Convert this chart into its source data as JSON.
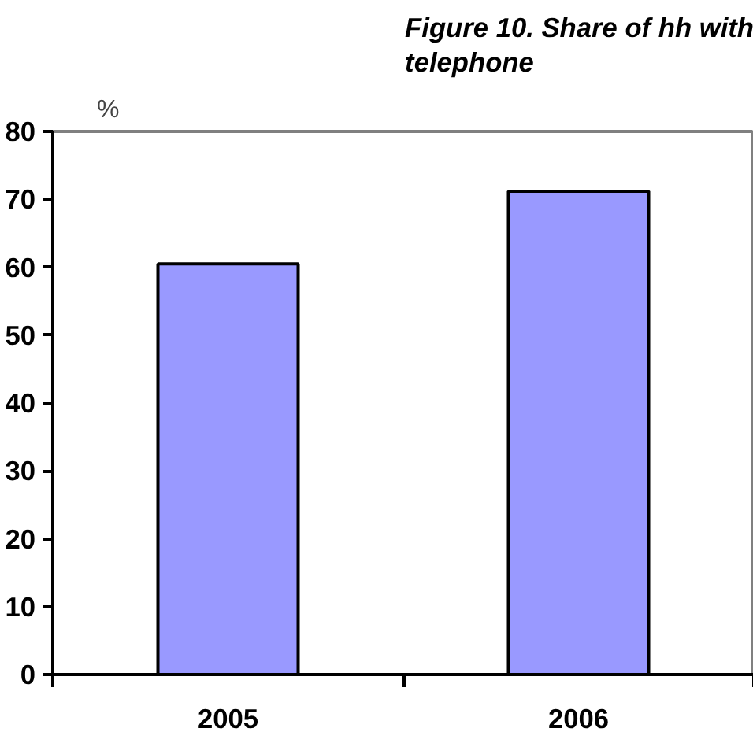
{
  "chart_data": {
    "type": "bar",
    "title": "Figure 10. Share of hh with telephone",
    "ylabel": "%",
    "categories": [
      "2005",
      "2006"
    ],
    "values": [
      60.5,
      71.2
    ],
    "color": "#9999ff",
    "ylim": [
      0,
      80
    ],
    "yticks": [
      0,
      10,
      20,
      30,
      40,
      50,
      60,
      70,
      80
    ],
    "grid": false
  }
}
